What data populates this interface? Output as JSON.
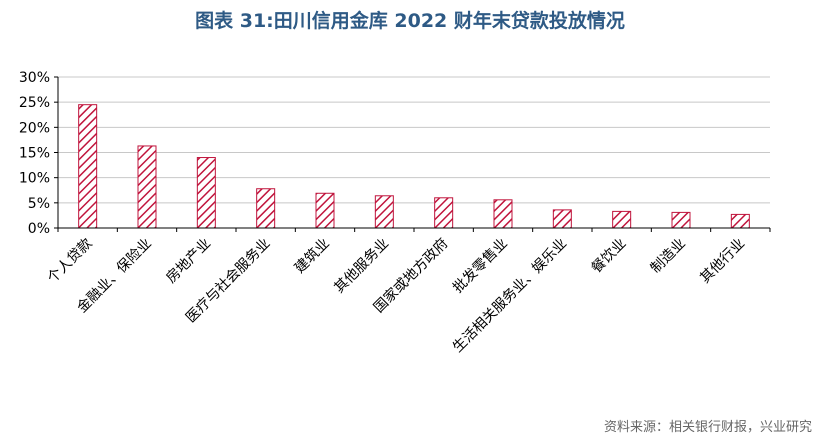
{
  "title": "图表 31:田川信用金库 2022 财年末贷款投放情况",
  "source": "资料来源：相关银行财报，兴业研究",
  "colors": {
    "bar": "#c0143c",
    "title": "#2e5a85",
    "grid": "#c8c8c8"
  },
  "chart_data": {
    "type": "bar",
    "categories": [
      "个人贷款",
      "金融业、保险业",
      "房地产业",
      "医疗与社会服务业",
      "建筑业",
      "其他服务业",
      "国家或地方政府",
      "批发零售业",
      "生活相关服务业、娱乐业",
      "餐饮业",
      "制造业",
      "其他行业"
    ],
    "values": [
      24.5,
      16.3,
      14.0,
      7.8,
      6.9,
      6.4,
      6.0,
      5.6,
      3.6,
      3.3,
      3.1,
      2.7
    ],
    "yticks": [
      "0%",
      "5%",
      "10%",
      "15%",
      "20%",
      "25%",
      "30%"
    ],
    "ylim": [
      0,
      30
    ],
    "grid": true,
    "fill": "diagonal-hatch"
  }
}
